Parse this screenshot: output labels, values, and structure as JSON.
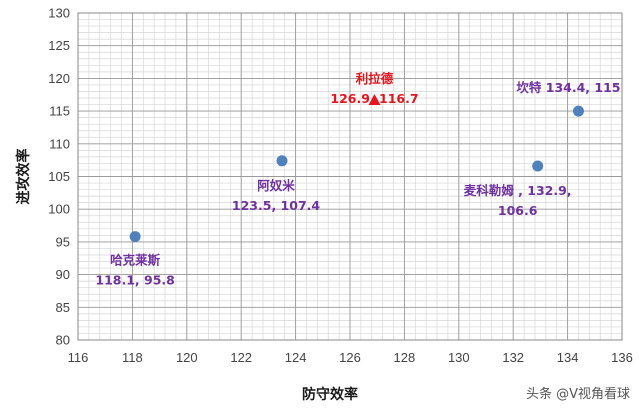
{
  "chart_data": {
    "type": "scatter",
    "title": "",
    "xlabel": "防守效率",
    "ylabel": "进攻效率",
    "xlim": [
      116,
      136
    ],
    "ylim": [
      80,
      130
    ],
    "x_ticks": [
      116,
      118,
      120,
      122,
      124,
      126,
      128,
      130,
      132,
      134,
      136
    ],
    "y_ticks": [
      80,
      85,
      90,
      95,
      100,
      105,
      110,
      115,
      120,
      125,
      130
    ],
    "grid": "on",
    "legend": "none",
    "colors": {
      "point": "#4f81bd",
      "highlight": "#e8141c",
      "label": "#7030a0",
      "highlight_label": "#e8141c"
    },
    "points": [
      {
        "name": "哈克莱斯",
        "x": 118.1,
        "y": 95.8,
        "marker": "circle",
        "label_line1": "哈克莱斯",
        "label_line2": "118.1, 95.8"
      },
      {
        "name": "阿奴米",
        "x": 123.5,
        "y": 107.4,
        "marker": "circle",
        "label_line1": "阿奴米",
        "label_line2": "123.5, 107.4"
      },
      {
        "name": "利拉德",
        "x": 126.9,
        "y": 116.7,
        "marker": "triangle",
        "label_line1": "利拉德",
        "label_line2": "126.9, 116.7"
      },
      {
        "name": "麦科勒姆",
        "x": 132.9,
        "y": 106.6,
        "marker": "circle",
        "label_line1": "麦科勒姆 , 132.9,",
        "label_line2": "106.6"
      },
      {
        "name": "坎特",
        "x": 134.4,
        "y": 115,
        "marker": "circle",
        "label_line1": "坎特 134.4, 115",
        "label_line2": ""
      }
    ]
  },
  "watermark": "头条 @V视角看球"
}
